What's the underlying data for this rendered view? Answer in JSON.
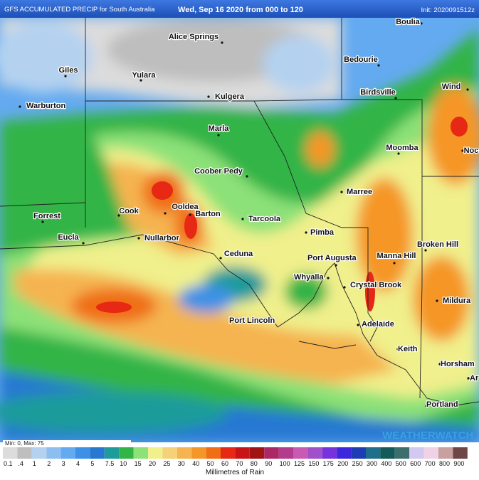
{
  "header": {
    "title": "GFS ACCUMULATED PRECIP for South Australia",
    "period": "Wed, Sep 16 2020 from 000 to 120",
    "init": "Init: 2020091512z"
  },
  "places": [
    "Boulia",
    "Alice Springs",
    "Giles",
    "Yulara",
    "Bedourie",
    "Kulgera",
    "Birdsville",
    "Wind",
    "Warburton",
    "Marla",
    "Moomba",
    "Noc",
    "Coober Pedy",
    "Marree",
    "Cook",
    "Ooldea",
    "Barton",
    "Forrest",
    "Tarcoola",
    "Broken Hill",
    "Eucla",
    "Nullarbor",
    "Pimba",
    "Ceduna",
    "Port Augusta",
    "Manna Hill",
    "Whyalla",
    "Crystal Brook",
    "Mildura",
    "Port Lincoln",
    "Adelaide",
    "Keith",
    "Horsham",
    "Ar",
    "Portland"
  ],
  "brand": "WEATHERWATCH",
  "legend": {
    "range": "Min: 0, Max: 75",
    "unit": "Millimetres of Rain",
    "levels": [
      {
        "label": "0.1",
        "color": "#dcdcdc"
      },
      {
        "label": ".4",
        "color": "#bebebe"
      },
      {
        "label": "1",
        "color": "#b4d2f0"
      },
      {
        "label": "2",
        "color": "#8cbef0"
      },
      {
        "label": "3",
        "color": "#64aaf0"
      },
      {
        "label": "4",
        "color": "#3c91e6"
      },
      {
        "label": "5",
        "color": "#2878d2"
      },
      {
        "label": "7.5",
        "color": "#1e9b9b"
      },
      {
        "label": "10",
        "color": "#32b446"
      },
      {
        "label": "15",
        "color": "#8ce178"
      },
      {
        "label": "20",
        "color": "#f0f08c"
      },
      {
        "label": "25",
        "color": "#f5d278"
      },
      {
        "label": "30",
        "color": "#f5b450"
      },
      {
        "label": "40",
        "color": "#f59628"
      },
      {
        "label": "50",
        "color": "#f06e14"
      },
      {
        "label": "60",
        "color": "#e62814"
      },
      {
        "label": "70",
        "color": "#c81414"
      },
      {
        "label": "80",
        "color": "#a01414"
      },
      {
        "label": "90",
        "color": "#aa2864"
      },
      {
        "label": "100",
        "color": "#b43c8c"
      },
      {
        "label": "125",
        "color": "#c85ab4"
      },
      {
        "label": "150",
        "color": "#a050c8"
      },
      {
        "label": "175",
        "color": "#7832dc"
      },
      {
        "label": "200",
        "color": "#3c28dc"
      },
      {
        "label": "250",
        "color": "#1e3cb4"
      },
      {
        "label": "300",
        "color": "#1e6e8c"
      },
      {
        "label": "400",
        "color": "#145a5a"
      },
      {
        "label": "500",
        "color": "#3c6e6e"
      },
      {
        "label": "600",
        "color": "#d2c8f0"
      },
      {
        "label": "700",
        "color": "#f0d2e6"
      },
      {
        "label": "800",
        "color": "#c8a0a0"
      },
      {
        "label": "900",
        "color": "#6e4646"
      }
    ]
  }
}
